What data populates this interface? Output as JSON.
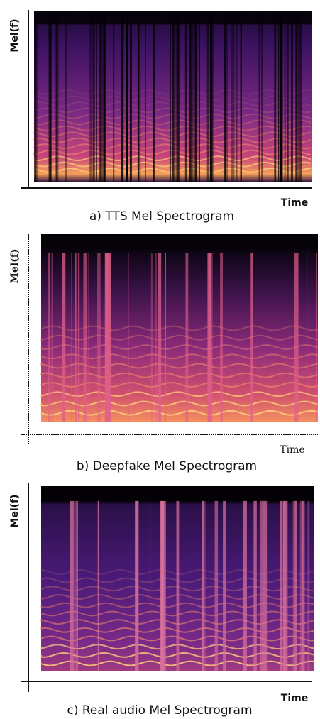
{
  "panels": [
    {
      "y_label": "Mel(f)",
      "x_label": "Time",
      "caption": "a) TTS Mel Spectrogram"
    },
    {
      "y_label": "Mel(f)",
      "x_label": "Time",
      "caption": "b) Deepfake Mel Spectrogram"
    },
    {
      "y_label": "Mel(f)",
      "x_label": "Time",
      "caption": "c) Real audio Mel Spectrogram"
    }
  ]
}
